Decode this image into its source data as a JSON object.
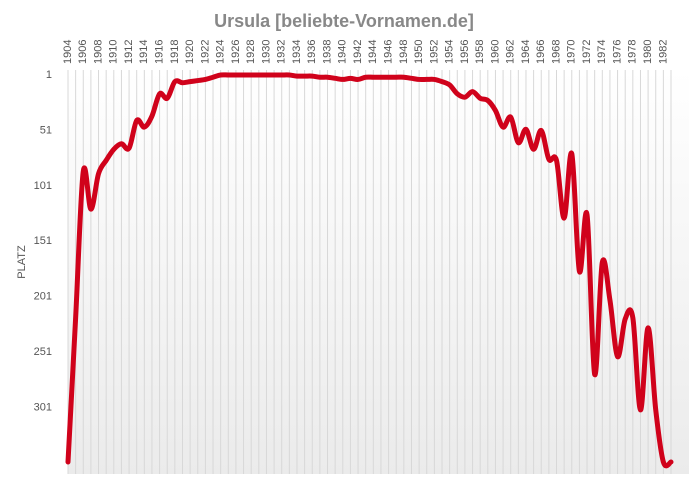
{
  "chart_data": {
    "type": "line",
    "title": "Ursula [beliebte-Vornamen.de]",
    "y_label": "PLATZ",
    "x": [
      1904,
      1905,
      1906,
      1907,
      1908,
      1909,
      1910,
      1911,
      1912,
      1913,
      1914,
      1915,
      1916,
      1917,
      1918,
      1919,
      1920,
      1921,
      1922,
      1923,
      1924,
      1925,
      1926,
      1927,
      1928,
      1929,
      1930,
      1931,
      1932,
      1933,
      1934,
      1935,
      1936,
      1937,
      1938,
      1939,
      1940,
      1941,
      1942,
      1943,
      1944,
      1945,
      1946,
      1947,
      1948,
      1949,
      1950,
      1951,
      1952,
      1953,
      1954,
      1955,
      1956,
      1957,
      1958,
      1959,
      1960,
      1961,
      1962,
      1963,
      1964,
      1965,
      1966,
      1967,
      1968,
      1969,
      1970,
      1971,
      1972,
      1973,
      1974,
      1975,
      1976,
      1977,
      1978,
      1979,
      1980,
      1981,
      1982,
      1983
    ],
    "series": [
      {
        "name": "Ursula",
        "color": "#d0021b",
        "values": [
          350,
          220,
          88,
          122,
          90,
          78,
          68,
          63,
          67,
          42,
          48,
          38,
          18,
          22,
          7,
          8,
          7,
          6,
          5,
          3,
          1,
          1,
          1,
          1,
          1,
          1,
          1,
          1,
          1,
          1,
          2,
          2,
          2,
          3,
          3,
          4,
          5,
          4,
          5,
          3,
          3,
          3,
          3,
          3,
          3,
          4,
          5,
          5,
          5,
          7,
          10,
          18,
          21,
          16,
          22,
          24,
          33,
          48,
          39,
          62,
          50,
          68,
          51,
          77,
          78,
          130,
          72,
          178,
          127,
          271,
          170,
          204,
          255,
          221,
          220,
          303,
          229,
          303,
          350,
          350
        ]
      }
    ],
    "xlim": [
      1904,
      1983
    ],
    "ylim": [
      1,
      350
    ],
    "y_inverted": true,
    "xticks": [
      1904,
      1906,
      1908,
      1910,
      1912,
      1914,
      1916,
      1918,
      1920,
      1922,
      1924,
      1926,
      1928,
      1930,
      1932,
      1934,
      1936,
      1938,
      1940,
      1942,
      1944,
      1946,
      1948,
      1950,
      1952,
      1954,
      1956,
      1958,
      1960,
      1962,
      1964,
      1966,
      1968,
      1970,
      1972,
      1974,
      1976,
      1978,
      1980,
      1982
    ],
    "yticks": [
      1,
      51,
      101,
      151,
      201,
      251,
      301
    ],
    "grid": true
  }
}
